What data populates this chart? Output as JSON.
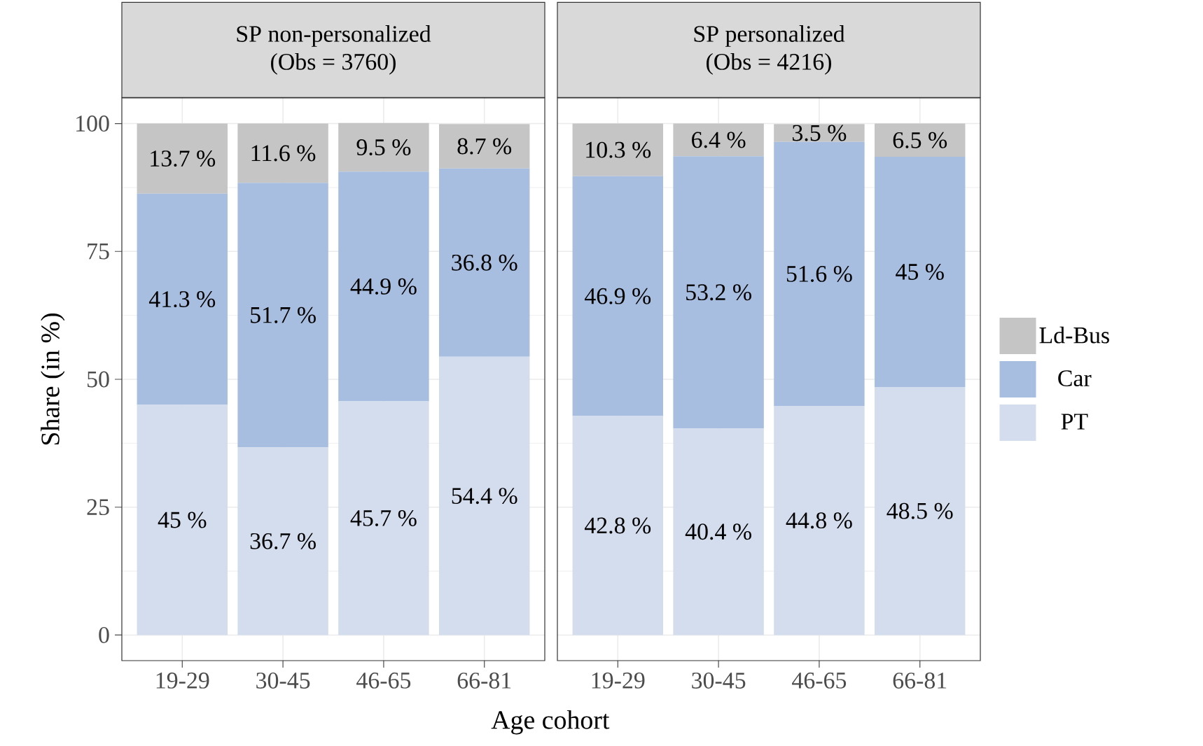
{
  "chart_data": [
    {
      "type": "bar",
      "stacked": true,
      "title": "SP non-personalized",
      "subtitle": "(Obs = 3760)",
      "xlabel": "Age cohort",
      "ylabel": "Share (in %)",
      "categories": [
        "19-29",
        "30-45",
        "46-65",
        "66-81"
      ],
      "ylim": [
        -5,
        105
      ],
      "yticks": [
        0,
        25,
        50,
        75,
        100
      ],
      "grid": true,
      "series": [
        {
          "color": "#d3ddee",
          "values": [
            45,
            36.7,
            45.7,
            54.4
          ],
          "value_labels": [
            "45 %",
            "36.7 %",
            "45.7 %",
            "54.4 %"
          ]
        },
        {
          "color": "#a7bee0",
          "values": [
            41.3,
            51.7,
            44.9,
            36.8
          ],
          "value_labels": [
            "41.3 %",
            "51.7 %",
            "44.9 %",
            "36.8 %"
          ]
        },
        {
          "color": "#c5c5c5",
          "values": [
            13.7,
            11.6,
            9.5,
            8.7
          ],
          "value_labels": [
            "13.7 %",
            "11.6 %",
            "9.5 %",
            "8.7 %"
          ]
        }
      ]
    },
    {
      "type": "bar",
      "stacked": true,
      "title": "SP personalized",
      "subtitle": "(Obs = 4216)",
      "categories": [
        "19-29",
        "30-45",
        "46-65",
        "66-81"
      ],
      "ylim": [
        -5,
        105
      ],
      "yticks": [
        0,
        25,
        50,
        75,
        100
      ],
      "grid": true,
      "tick_labels": "x",
      "legend": "right",
      "series": [
        {
          "name": "PT",
          "color": "#d3ddee",
          "values": [
            42.8,
            40.4,
            44.8,
            48.5
          ],
          "value_labels": [
            "42.8 %",
            "40.4 %",
            "44.8 %",
            "48.5 %"
          ]
        },
        {
          "name": "Car",
          "color": "#a7bee0",
          "values": [
            46.9,
            53.2,
            51.6,
            45
          ],
          "value_labels": [
            "46.9 %",
            "53.2 %",
            "51.6 %",
            "45 %"
          ]
        },
        {
          "name": "Ld-Bus",
          "color": "#c5c5c5",
          "values": [
            10.3,
            6.4,
            3.5,
            6.5
          ],
          "value_labels": [
            "10.3 %",
            "6.4 %",
            "3.5 %",
            "6.5 %"
          ]
        }
      ]
    }
  ]
}
